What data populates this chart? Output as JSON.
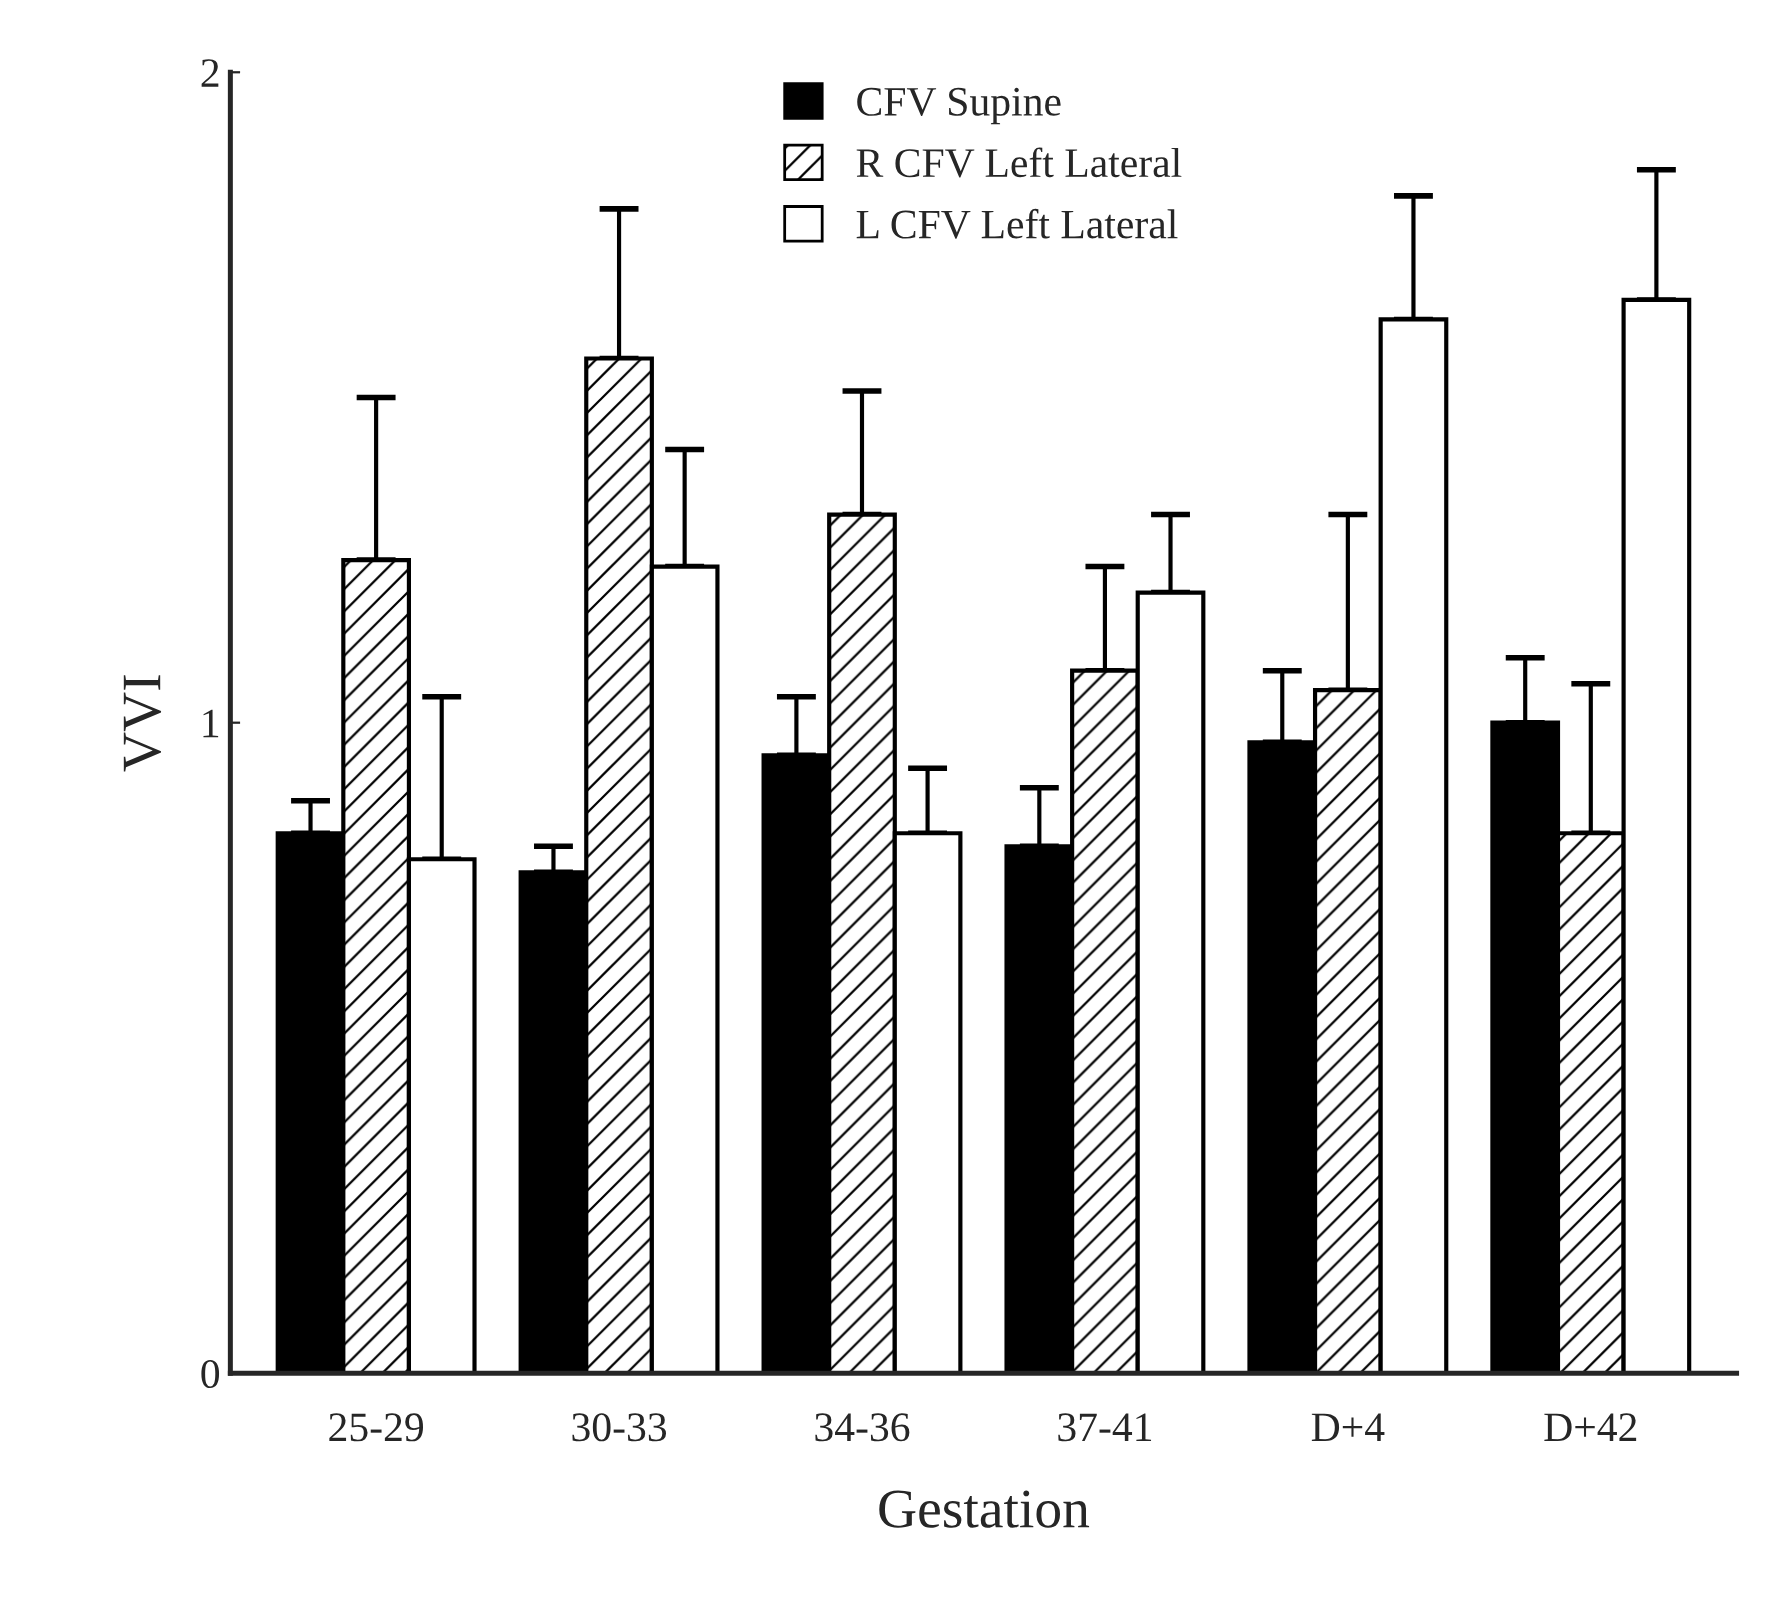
{
  "chart_data": {
    "type": "bar",
    "xlabel": "Gestation",
    "ylabel": "VVI",
    "categories": [
      "25-29",
      "30-33",
      "34-36",
      "37-41",
      "D+4",
      "D+42"
    ],
    "series": [
      {
        "name": "CFV Supine",
        "color": "#000000",
        "values": [
          0.83,
          0.77,
          0.95,
          0.81,
          0.97,
          1.0
        ],
        "errors": [
          [
            0.83,
            0.88
          ],
          [
            0.77,
            0.81
          ],
          [
            0.95,
            1.04
          ],
          [
            0.81,
            0.9
          ],
          [
            0.97,
            1.08
          ],
          [
            1.0,
            1.1
          ]
        ]
      },
      {
        "name": "R CFV Left Lateral",
        "color": "#000000",
        "values": [
          1.25,
          1.56,
          1.32,
          1.08,
          1.05,
          0.83
        ],
        "errors": [
          [
            1.25,
            1.5
          ],
          [
            1.56,
            1.79
          ],
          [
            1.32,
            1.51
          ],
          [
            1.08,
            1.24
          ],
          [
            1.05,
            1.32
          ],
          [
            0.83,
            1.06
          ]
        ]
      },
      {
        "name": "L CFV Left Lateral",
        "color": "#ffffff",
        "values": [
          0.79,
          1.24,
          0.83,
          1.2,
          1.62,
          1.65
        ],
        "errors": [
          [
            0.79,
            1.04
          ],
          [
            1.24,
            1.42
          ],
          [
            0.83,
            0.93
          ],
          [
            1.2,
            1.32
          ],
          [
            1.62,
            1.81
          ],
          [
            1.65,
            1.85
          ]
        ]
      }
    ],
    "ylim": [
      0,
      2
    ],
    "yticks": [
      0,
      1,
      2
    ],
    "grid": false,
    "legend": "top"
  }
}
